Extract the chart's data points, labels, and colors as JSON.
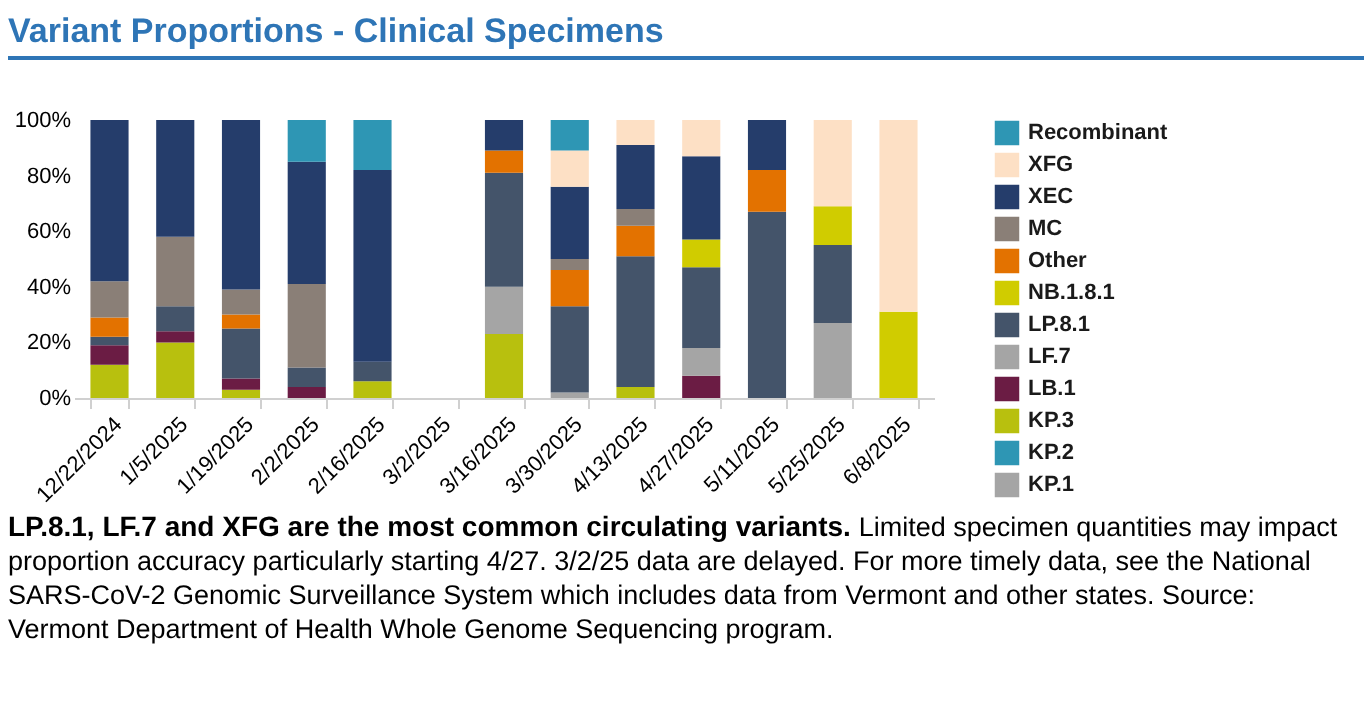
{
  "chart_data": {
    "type": "bar",
    "title": "Variant Proportions - Clinical Specimens",
    "stacked": true,
    "legend": "right",
    "grid": false,
    "categories": [
      "12/22/2024",
      "1/5/2025",
      "1/19/2025",
      "2/2/2025",
      "2/16/2025",
      "3/2/2025",
      "3/16/2025",
      "3/30/2025",
      "4/13/2025",
      "4/27/2025",
      "5/11/2025",
      "5/25/2025",
      "6/8/2025"
    ],
    "ylim": [
      0,
      100
    ],
    "yticks": [
      {
        "value": 0,
        "label": "0%"
      },
      {
        "value": 20,
        "label": "20%"
      },
      {
        "value": 40,
        "label": "40%"
      },
      {
        "value": 60,
        "label": "60%"
      },
      {
        "value": 80,
        "label": "80%"
      },
      {
        "value": 100,
        "label": "100%"
      }
    ],
    "series": [
      {
        "name": "KP.1",
        "color": "#a5a5a5",
        "values": [
          null,
          null,
          null,
          null,
          null,
          null,
          null,
          null,
          null,
          null,
          null,
          null,
          null
        ]
      },
      {
        "name": "KP.2",
        "color": "#2e96b4",
        "values": [
          null,
          null,
          null,
          null,
          null,
          null,
          null,
          null,
          null,
          null,
          null,
          null,
          null
        ]
      },
      {
        "name": "KP.3",
        "color": "#b8c00e",
        "values": [
          12,
          20,
          3,
          null,
          6,
          null,
          23,
          null,
          4,
          null,
          null,
          null,
          null
        ]
      },
      {
        "name": "LB.1",
        "color": "#6b1c44",
        "values": [
          7,
          4,
          4,
          4,
          null,
          null,
          null,
          null,
          null,
          8,
          null,
          null,
          null
        ]
      },
      {
        "name": "LF.7",
        "color": "#a5a5a5",
        "values": [
          null,
          null,
          null,
          null,
          null,
          null,
          17,
          2,
          null,
          10,
          null,
          27,
          null
        ]
      },
      {
        "name": "LP.8.1",
        "color": "#44546a",
        "values": [
          3,
          9,
          18,
          7,
          7,
          null,
          41,
          31,
          47,
          29,
          67,
          28,
          null
        ]
      },
      {
        "name": "NB.1.8.1",
        "color": "#d0cc00",
        "values": [
          null,
          null,
          null,
          null,
          null,
          null,
          null,
          null,
          null,
          10,
          null,
          14,
          31
        ]
      },
      {
        "name": "Other",
        "color": "#e37200",
        "values": [
          7,
          null,
          5,
          null,
          null,
          null,
          8,
          13,
          11,
          null,
          15,
          null,
          null
        ]
      },
      {
        "name": "MC",
        "color": "#8a7f77",
        "values": [
          13,
          25,
          9,
          30,
          null,
          null,
          null,
          4,
          6,
          null,
          null,
          null,
          null
        ]
      },
      {
        "name": "XEC",
        "color": "#253d6b",
        "values": [
          58,
          42,
          61,
          44,
          69,
          null,
          11,
          26,
          23,
          30,
          18,
          null,
          null
        ]
      },
      {
        "name": "XFG",
        "color": "#fde0c5",
        "values": [
          null,
          null,
          null,
          null,
          null,
          null,
          null,
          13,
          9,
          13,
          null,
          31,
          69
        ]
      },
      {
        "name": "Recombinant",
        "color": "#2e96b4",
        "values": [
          null,
          null,
          null,
          15,
          18,
          null,
          null,
          11,
          null,
          null,
          null,
          null,
          null
        ]
      }
    ],
    "annotations": [
      "LP.8.1, LF.7 and XFG are the most common circulating variants.",
      "Limited specimen quantities may impact proportion accuracy particularly starting 4/27. 3/2/25 data are delayed. For more timely data, see the National SARS-CoV-2 Genomic Surveillance System which includes data from Vermont and other states. Source: Vermont Department of Health Whole Genome Sequencing program."
    ]
  }
}
